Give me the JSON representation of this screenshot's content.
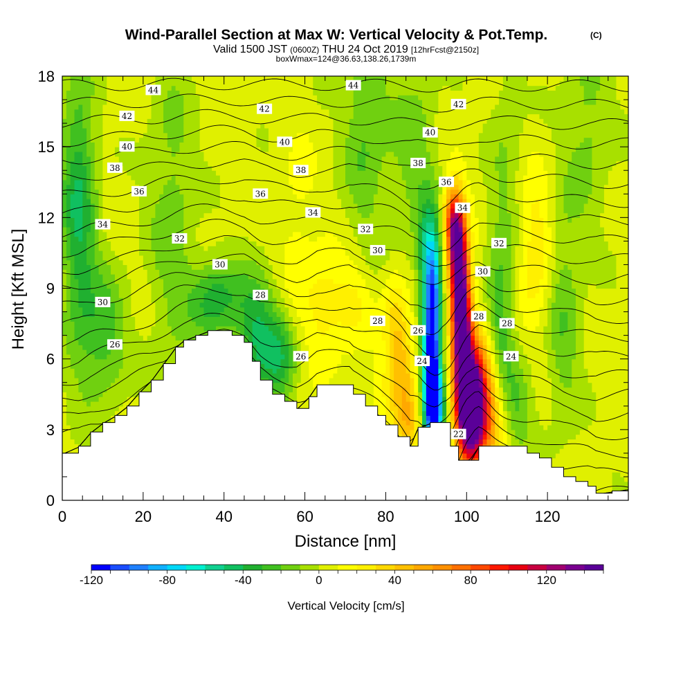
{
  "chart_data": {
    "type": "heatmap",
    "title": {
      "main": "Wind-Parallel Section at Max W: Vertical Velocity & Pot.Temp.",
      "main_suffix": "(C)",
      "valid_prefix": "Valid 1500 JST",
      "valid_utc": "(0600Z)",
      "valid_date": "THU 24 Oct 2019",
      "forecast": "[12hrFcst@2150z]",
      "box": "boxWmax=124@36.63,138.26,1739m"
    },
    "xlabel": "Distance [nm]",
    "ylabel": "Height [Kft MSL]",
    "xlim": [
      0,
      140
    ],
    "ylim": [
      0,
      18
    ],
    "x_ticks": [
      "0",
      "20",
      "40",
      "60",
      "80",
      "100",
      "120"
    ],
    "y_ticks": [
      "0",
      "3",
      "6",
      "9",
      "12",
      "15",
      "18"
    ],
    "terrain": [
      [
        0,
        2.0
      ],
      [
        4,
        2.3
      ],
      [
        7,
        2.9
      ],
      [
        10,
        3.3
      ],
      [
        13,
        3.6
      ],
      [
        16,
        4.0
      ],
      [
        19,
        4.6
      ],
      [
        22,
        5.1
      ],
      [
        25,
        5.8
      ],
      [
        28,
        6.5
      ],
      [
        30,
        6.8
      ],
      [
        33,
        7.0
      ],
      [
        36,
        7.2
      ],
      [
        40,
        7.2
      ],
      [
        42,
        7.0
      ],
      [
        45,
        6.7
      ],
      [
        47,
        5.9
      ],
      [
        49,
        5.1
      ],
      [
        52,
        4.5
      ],
      [
        55,
        4.2
      ],
      [
        58,
        3.9
      ],
      [
        61,
        4.4
      ],
      [
        63,
        4.9
      ],
      [
        67,
        4.9
      ],
      [
        71,
        4.9
      ],
      [
        72,
        4.5
      ],
      [
        75,
        4.0
      ],
      [
        78,
        3.6
      ],
      [
        80,
        3.2
      ],
      [
        83,
        2.7
      ],
      [
        86,
        2.3
      ],
      [
        88,
        3.1
      ],
      [
        91,
        3.3
      ],
      [
        94,
        3.3
      ],
      [
        96,
        2.3
      ],
      [
        98,
        1.7
      ],
      [
        101,
        1.7
      ],
      [
        103,
        2.3
      ],
      [
        107,
        2.3
      ],
      [
        112,
        2.3
      ],
      [
        115,
        2.0
      ],
      [
        118,
        1.8
      ],
      [
        121,
        1.4
      ],
      [
        124,
        1.0
      ],
      [
        127,
        0.8
      ],
      [
        130,
        0.6
      ],
      [
        132,
        0.3
      ],
      [
        136,
        0.4
      ],
      [
        140,
        0.5
      ]
    ],
    "vertical_velocity_features": [
      {
        "x": 92,
        "z": 4.0,
        "w": -115,
        "sx": 1.6,
        "sz": 1.3
      },
      {
        "x": 91,
        "z": 6.2,
        "w": -90,
        "sx": 1.5,
        "sz": 2.2
      },
      {
        "x": 92,
        "z": 8.8,
        "w": -70,
        "sx": 1.3,
        "sz": 2.0
      },
      {
        "x": 90,
        "z": 10.5,
        "w": -45,
        "sx": 1.6,
        "sz": 1.5
      },
      {
        "x": 101,
        "z": 3.8,
        "w": 140,
        "sx": 2.2,
        "sz": 1.5
      },
      {
        "x": 99,
        "z": 6.8,
        "w": 125,
        "sx": 1.7,
        "sz": 2.5
      },
      {
        "x": 98,
        "z": 9.8,
        "w": 100,
        "sx": 1.5,
        "sz": 1.9
      },
      {
        "x": 97,
        "z": 11.2,
        "w": 65,
        "sx": 1.5,
        "sz": 1.1
      },
      {
        "x": 96,
        "z": 12.3,
        "w": 40,
        "sx": 1.6,
        "sz": 0.9
      },
      {
        "x": 105,
        "z": 3.5,
        "w": 60,
        "sx": 4.0,
        "sz": 1.7
      },
      {
        "x": 103,
        "z": 5.5,
        "w": 45,
        "sx": 3.2,
        "sz": 1.6
      },
      {
        "x": 84,
        "z": 5.5,
        "w": 38,
        "sx": 2.5,
        "sz": 2.0
      },
      {
        "x": 86,
        "z": 3.2,
        "w": 25,
        "sx": 2.0,
        "sz": 0.9
      },
      {
        "x": 82,
        "z": 8.0,
        "w": 18,
        "sx": 2.0,
        "sz": 1.5
      },
      {
        "x": 117,
        "z": 10.5,
        "w": 26,
        "sx": 3.0,
        "sz": 2.2
      },
      {
        "x": 65,
        "z": 8.3,
        "w": 22,
        "sx": 3.5,
        "sz": 1.5
      },
      {
        "x": 72,
        "z": 8.3,
        "w": 18,
        "sx": 3.0,
        "sz": 1.3
      },
      {
        "x": 55,
        "z": 4.8,
        "w": 8,
        "sx": 4.0,
        "sz": 0.8
      },
      {
        "x": 78,
        "z": 4.4,
        "w": 10,
        "sx": 4.0,
        "sz": 1.2
      },
      {
        "x": 58,
        "z": 11.2,
        "w": 10,
        "sx": 3.5,
        "sz": 3.0
      },
      {
        "x": 4,
        "z": 12.5,
        "w": -45,
        "sx": 3.0,
        "sz": 4.0
      },
      {
        "x": 10,
        "z": 7.0,
        "w": -30,
        "sx": 4.0,
        "sz": 2.0
      },
      {
        "x": 38,
        "z": 8.5,
        "w": -40,
        "sx": 4.5,
        "sz": 1.2
      },
      {
        "x": 48,
        "z": 7.0,
        "w": -42,
        "sx": 3.5,
        "sz": 1.8
      },
      {
        "x": 54,
        "z": 5.8,
        "w": -38,
        "sx": 3.0,
        "sz": 1.5
      },
      {
        "x": 27,
        "z": 12.0,
        "w": -20,
        "sx": 4.0,
        "sz": 5.0
      },
      {
        "x": 75,
        "z": 16.0,
        "w": -25,
        "sx": 4.0,
        "sz": 3.5
      },
      {
        "x": 87,
        "z": 14.5,
        "w": -20,
        "sx": 4.0,
        "sz": 3.0
      },
      {
        "x": 108,
        "z": 7.0,
        "w": -35,
        "sx": 2.5,
        "sz": 3.0
      },
      {
        "x": 112,
        "z": 4.0,
        "w": -30,
        "sx": 3.0,
        "sz": 1.5
      },
      {
        "x": 124,
        "z": 8.0,
        "w": -22,
        "sx": 3.0,
        "sz": 3.5
      },
      {
        "x": 130,
        "z": 16.0,
        "w": -18,
        "sx": 4.0,
        "sz": 3.0
      },
      {
        "x": 110,
        "z": 15.0,
        "w": -12,
        "sx": 3.0,
        "sz": 4.0
      }
    ],
    "theta_contours": {
      "levels": [
        21,
        22,
        23,
        24,
        25,
        26,
        27,
        28,
        29,
        30,
        31,
        32,
        33,
        34,
        35,
        36,
        37,
        38,
        39,
        40,
        41,
        42,
        43,
        44,
        45
      ],
      "labels": [
        {
          "text": "44",
          "x": 22.5,
          "z": 17.4
        },
        {
          "text": "44",
          "x": 72,
          "z": 17.6
        },
        {
          "text": "42",
          "x": 16,
          "z": 16.3
        },
        {
          "text": "42",
          "x": 50,
          "z": 16.6
        },
        {
          "text": "42",
          "x": 98,
          "z": 16.8
        },
        {
          "text": "40",
          "x": 16,
          "z": 15.0
        },
        {
          "text": "40",
          "x": 55,
          "z": 15.2
        },
        {
          "text": "40",
          "x": 91,
          "z": 15.6
        },
        {
          "text": "38",
          "x": 13,
          "z": 14.1
        },
        {
          "text": "38",
          "x": 59,
          "z": 14.0
        },
        {
          "text": "38",
          "x": 88,
          "z": 14.3
        },
        {
          "text": "36",
          "x": 19,
          "z": 13.1
        },
        {
          "text": "36",
          "x": 49,
          "z": 13.0
        },
        {
          "text": "36",
          "x": 95,
          "z": 13.5
        },
        {
          "text": "34",
          "x": 10,
          "z": 11.7
        },
        {
          "text": "34",
          "x": 62,
          "z": 12.2
        },
        {
          "text": "34",
          "x": 99,
          "z": 12.4
        },
        {
          "text": "32",
          "x": 29,
          "z": 11.1
        },
        {
          "text": "32",
          "x": 75,
          "z": 11.5
        },
        {
          "text": "32",
          "x": 108,
          "z": 10.9
        },
        {
          "text": "30",
          "x": 10,
          "z": 8.4
        },
        {
          "text": "30",
          "x": 39,
          "z": 10.0
        },
        {
          "text": "30",
          "x": 78,
          "z": 10.6
        },
        {
          "text": "30",
          "x": 104,
          "z": 9.7
        },
        {
          "text": "28",
          "x": 49,
          "z": 8.7
        },
        {
          "text": "28",
          "x": 78,
          "z": 7.6
        },
        {
          "text": "28",
          "x": 103,
          "z": 7.8
        },
        {
          "text": "28",
          "x": 110,
          "z": 7.5
        },
        {
          "text": "26",
          "x": 13,
          "z": 6.6
        },
        {
          "text": "26",
          "x": 59,
          "z": 6.1
        },
        {
          "text": "26",
          "x": 88,
          "z": 7.2
        },
        {
          "text": "24",
          "x": 89,
          "z": 5.9
        },
        {
          "text": "24",
          "x": 111,
          "z": 6.1
        },
        {
          "text": "22",
          "x": 98,
          "z": 2.8
        }
      ]
    },
    "colorbar": {
      "label": "Vertical Velocity [cm/s]",
      "min": -120,
      "step": 10,
      "tick_labels": [
        "-120",
        "-80",
        "-40",
        "0",
        "40",
        "80",
        "120"
      ],
      "colors": [
        "#0000ff",
        "#1a4dff",
        "#1f80ff",
        "#10b0ff",
        "#00d8f8",
        "#00f0d0",
        "#10d090",
        "#10c060",
        "#20b030",
        "#40c020",
        "#70d010",
        "#a8e000",
        "#e0f000",
        "#ffff00",
        "#fff000",
        "#ffd800",
        "#ffc000",
        "#ffa800",
        "#ff9000",
        "#ff7000",
        "#ff4800",
        "#ff1800",
        "#e80010",
        "#c80040",
        "#a00070",
        "#7a0090",
        "#5a0098"
      ]
    }
  }
}
